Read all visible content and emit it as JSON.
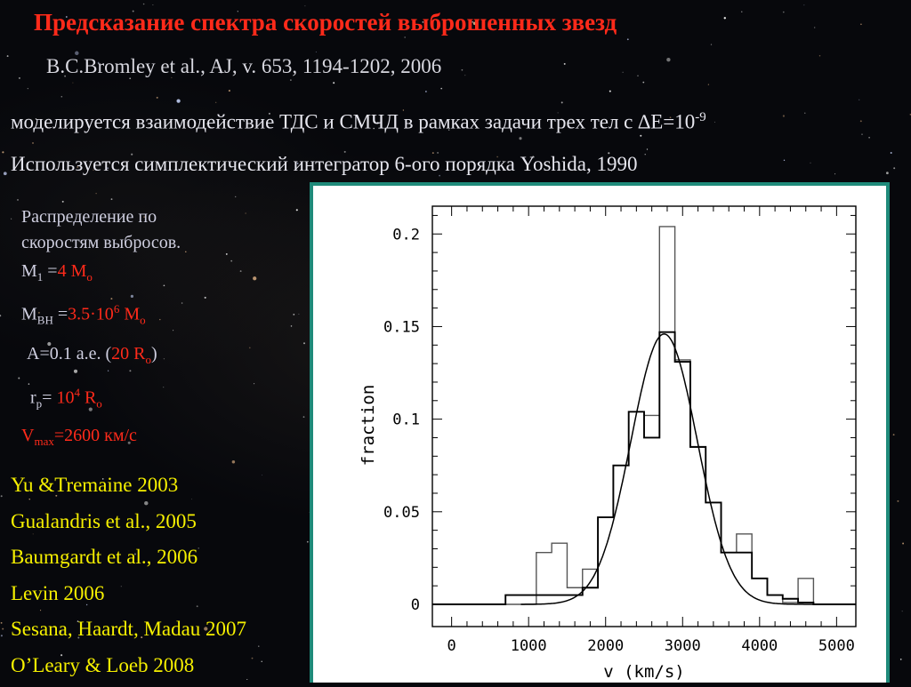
{
  "slide": {
    "title": "Предсказание спектра скоростей выброшенных звезд",
    "citation": "B.C.Bromley et al., AJ, v. 653, 1194-1202, 2006",
    "line1_main": "моделируется взаимодействие ТДС и СМЧД в рамках задачи трех тел с ∆E=10",
    "line1_sup": "-9",
    "line2": "Используется симплектический интегратор 6-ого порядка  Yoshida, 1990",
    "params": {
      "heading_1": "Распределение по",
      "heading_2": "скоростям выбросов.",
      "m1_label": "M",
      "m1_sub": "1",
      "m1_eq": " =",
      "m1_value": "4 M",
      "m1_unit_sub": "o",
      "mbh_label": "M",
      "mbh_sub": "BH",
      "mbh_eq": " =",
      "mbh_value": "3.5·10",
      "mbh_sup": "6",
      "mbh_unit": " M",
      "mbh_unit_sub": "o",
      "a_text": "A=0.1 а.е. (",
      "a_value": "20 R",
      "a_unit_sub": "o",
      "a_close": ")",
      "rp_label": "r",
      "rp_sub": "p",
      "rp_eq": "= ",
      "rp_value": "10",
      "rp_sup": "4",
      "rp_unit": " R",
      "rp_unit_sub": "o",
      "vmax_label": "V",
      "vmax_sub": "max",
      "vmax_value": "=2600 км/с"
    },
    "references": [
      "Yu &Tremaine 2003",
      "Gualandris et al., 2005",
      "Baumgardt et al., 2006",
      "Levin 2006",
      "Sesana, Haardt, Madau 2007",
      "O’Leary & Loeb 2008"
    ],
    "colors": {
      "title": "#ff2a1a",
      "references": "#f6f000",
      "panel_border": "#1f8a7a"
    }
  },
  "chart_data": {
    "type": "histogram",
    "xlabel": "v (km/s)",
    "ylabel": "fraction",
    "xlim": [
      -250,
      5250
    ],
    "ylim": [
      -0.012,
      0.215
    ],
    "xticks": [
      0,
      1000,
      2000,
      3000,
      4000,
      5000
    ],
    "xtick_labels": [
      "0",
      "1000",
      "2000",
      "3000",
      "4000",
      "5000"
    ],
    "yticks": [
      0,
      0.05,
      0.1,
      0.15,
      0.2
    ],
    "ytick_labels": [
      "0",
      "0.05",
      "0.1",
      "0.15",
      "0.2"
    ],
    "histograms": [
      {
        "series": "ejection-velocity-histogram",
        "style": "thin",
        "bin_edges": [
          -250,
          1100,
          1300,
          1500,
          1700,
          1900,
          2100,
          2300,
          2500,
          2700,
          2900,
          3100,
          3300,
          3500,
          3700,
          3900,
          4100,
          4300,
          4500,
          4700,
          5250
        ],
        "values": [
          0,
          0.028,
          0.033,
          0.009,
          0.019,
          0.047,
          0.075,
          0.104,
          0.102,
          0.204,
          0.132,
          0.085,
          0.055,
          0.028,
          0.038,
          0.014,
          0.005,
          0.001,
          0.014,
          0
        ]
      },
      {
        "series": "binned-model-histogram",
        "style": "thick",
        "bin_edges": [
          -250,
          700,
          1100,
          1700,
          1900,
          2100,
          2300,
          2500,
          2700,
          2900,
          3100,
          3300,
          3500,
          3700,
          3900,
          4100,
          4300,
          4500,
          4700,
          5250
        ],
        "values": [
          0,
          0.005,
          0.005,
          0.009,
          0.047,
          0.075,
          0.104,
          0.09,
          0.147,
          0.131,
          0.085,
          0.055,
          0.028,
          0.028,
          0.014,
          0.005,
          0.003,
          0.001,
          0
        ]
      }
    ],
    "curve": {
      "series": "gaussian-fit",
      "mean": 2760,
      "sigma": 430,
      "peak": 0.146
    }
  }
}
